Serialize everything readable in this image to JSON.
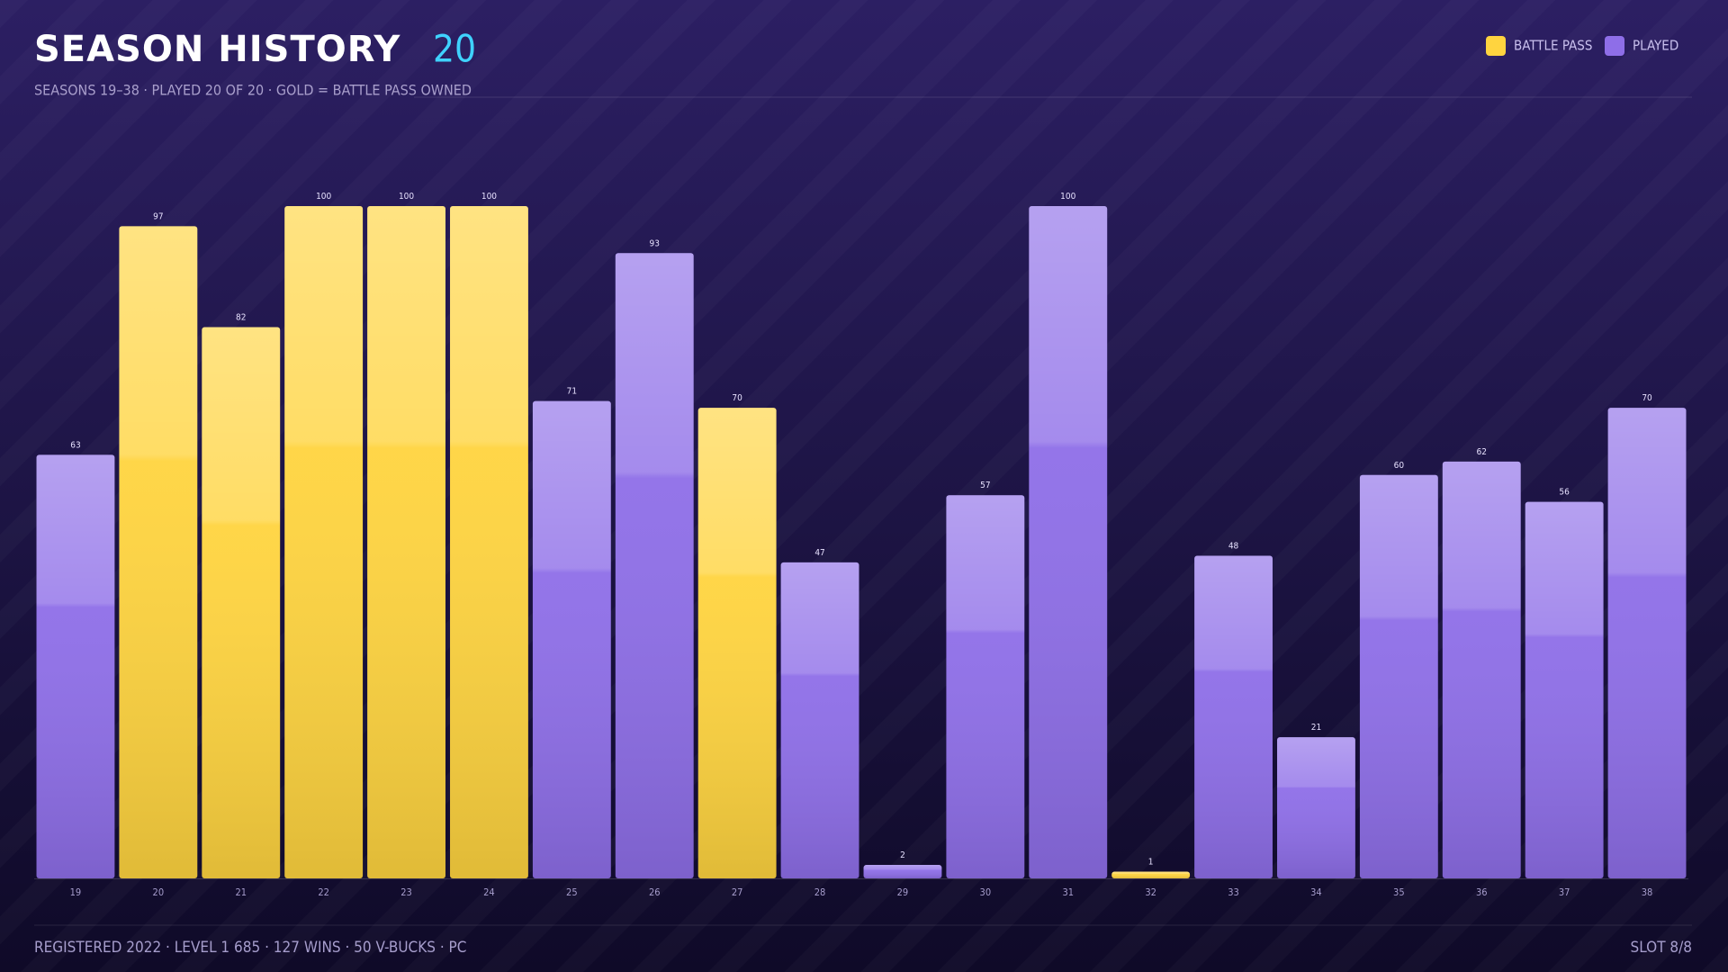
{
  "chart_data": {
    "type": "bar",
    "title": "SEASON HISTORY",
    "title_badge": "20",
    "subtitle": "SEASONS 19–38 · PLAYED 20 OF 20 · GOLD = BATTLE PASS OWNED",
    "categories": [
      "19",
      "20",
      "21",
      "22",
      "23",
      "24",
      "25",
      "26",
      "27",
      "28",
      "29",
      "30",
      "31",
      "32",
      "33",
      "34",
      "35",
      "36",
      "37",
      "38"
    ],
    "series": [
      {
        "name": "BATTLE PASS",
        "color": "#ffd43f",
        "values": [
          null,
          97,
          82,
          100,
          100,
          100,
          null,
          null,
          70,
          null,
          null,
          null,
          null,
          1,
          null,
          null,
          null,
          null,
          null,
          null
        ]
      },
      {
        "name": "PLAYED",
        "color": "#8e6ee8",
        "values": [
          63,
          null,
          null,
          null,
          null,
          null,
          71,
          93,
          null,
          47,
          2,
          57,
          100,
          null,
          48,
          21,
          60,
          62,
          56,
          70
        ]
      }
    ],
    "ylim": [
      0,
      100
    ],
    "grid": false,
    "legend": "top-right"
  },
  "footer": {
    "left": "REGISTERED 2022 · LEVEL 1 685 · 127 WINS · 50 V-BUCKS · PC",
    "right": "SLOT 8/8"
  }
}
